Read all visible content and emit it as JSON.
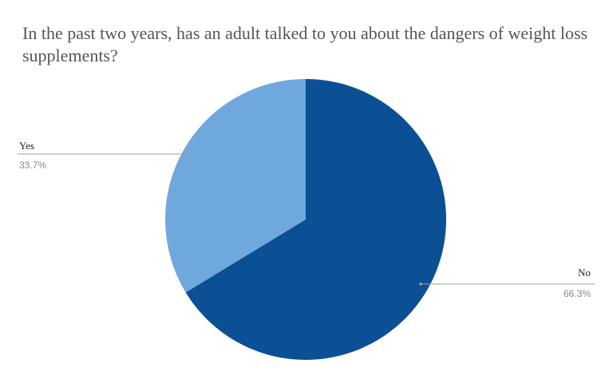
{
  "chart_data": {
    "type": "pie",
    "title": "In the past two years, has an adult talked to you about the dangers of weight loss supplements?",
    "slices": [
      {
        "label": "No",
        "value": 66.3,
        "display": "66.3%",
        "color": "#0b5094"
      },
      {
        "label": "Yes",
        "value": 33.7,
        "display": "33.7%",
        "color": "#6fa8dc"
      }
    ],
    "start": "12 o'clock",
    "direction": "clockwise",
    "legend": "leader-line labels"
  }
}
